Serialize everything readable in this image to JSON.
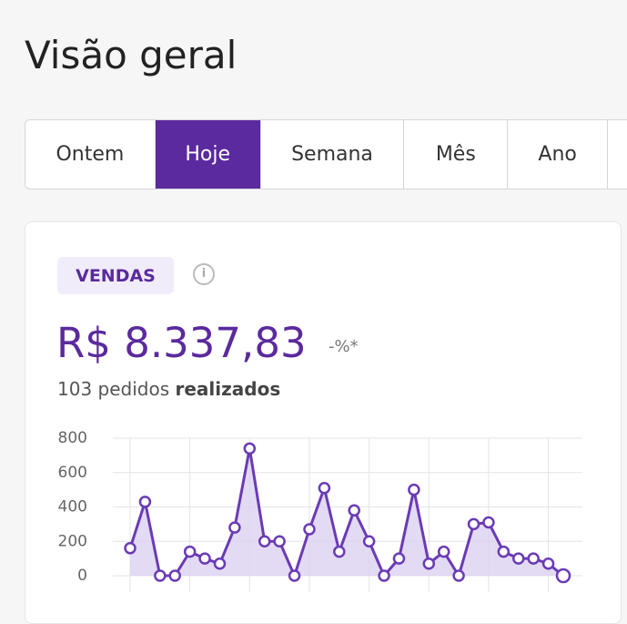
{
  "header": {
    "title": "Visão geral"
  },
  "tabs": {
    "items": [
      "Ontem",
      "Hoje",
      "Semana",
      "Mês",
      "Ano"
    ],
    "active": 1
  },
  "card": {
    "badge": "VENDAS",
    "amount": "R$ 8.337,83",
    "change": "-%*",
    "orders": "103 pedidos",
    "orders_suffix": "realizados"
  },
  "chart_data": {
    "type": "area",
    "series": [
      {
        "color": "#6a3bb5",
        "values": [
          160,
          430,
          0,
          0,
          140,
          100,
          70,
          280,
          740,
          200,
          200,
          0,
          270,
          510,
          140,
          380,
          200,
          0,
          100,
          500,
          70,
          140,
          0,
          300,
          310,
          140,
          100,
          100,
          70,
          0
        ]
      }
    ],
    "ylim": [
      0,
      800
    ],
    "yticks": [
      0,
      200,
      400,
      600,
      800
    ],
    "grid": true
  }
}
